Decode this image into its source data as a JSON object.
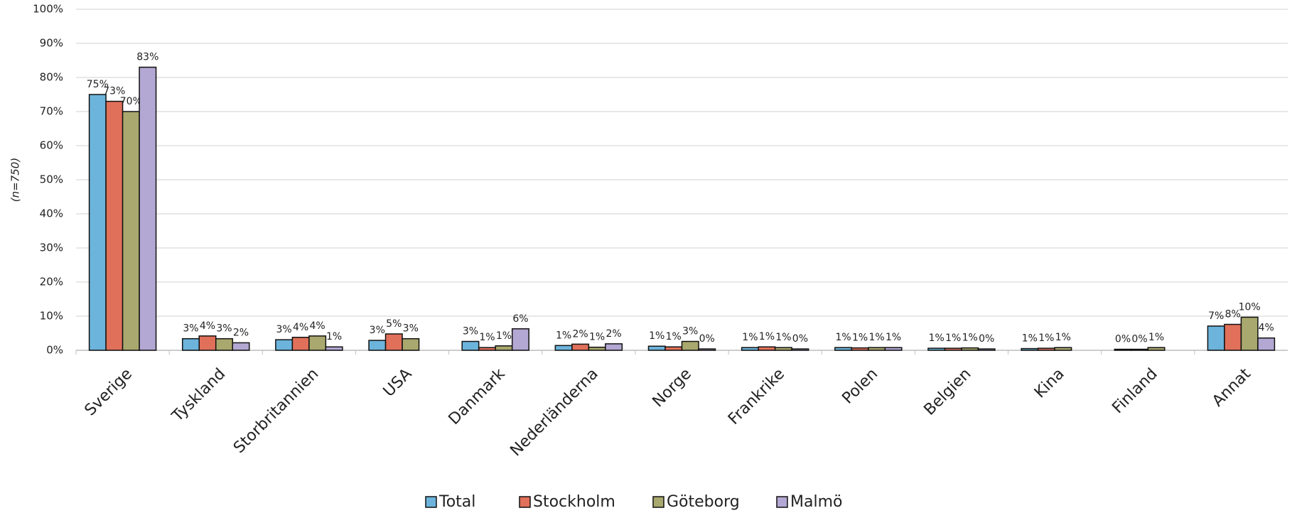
{
  "chart_data": {
    "type": "bar",
    "y_axis_label": "(n=750)",
    "categories": [
      "Sverige",
      "Tyskland",
      "Storbritannien",
      "USA",
      "Danmark",
      "Nederländerna",
      "Norge",
      "Frankrike",
      "Polen",
      "Belgien",
      "Kina",
      "Finland",
      "Annat"
    ],
    "series": [
      {
        "name": "Total",
        "color": "#6cb4dc",
        "values": [
          75,
          3.4,
          3.1,
          2.9,
          2.6,
          1.4,
          1.2,
          0.8,
          0.8,
          0.6,
          0.5,
          0.3,
          7.1
        ],
        "value_labels": [
          "75%",
          "3%",
          "3%",
          "3%",
          "3%",
          "1%",
          "1%",
          "1%",
          "1%",
          "1%",
          "1%",
          "0%",
          "7%"
        ]
      },
      {
        "name": "Stockholm",
        "color": "#e0705a",
        "values": [
          73,
          4.2,
          3.8,
          4.8,
          0.8,
          1.8,
          1.0,
          1.0,
          0.7,
          0.6,
          0.6,
          0.3,
          7.6
        ],
        "value_labels": [
          "73%",
          "4%",
          "4%",
          "5%",
          "1%",
          "2%",
          "1%",
          "1%",
          "1%",
          "1%",
          "1%",
          "0%",
          "8%"
        ]
      },
      {
        "name": "Göteborg",
        "color": "#a9a86e",
        "values": [
          70,
          3.4,
          4.2,
          3.4,
          1.3,
          0.9,
          2.6,
          0.8,
          0.8,
          0.7,
          0.8,
          0.8,
          9.7
        ],
        "value_labels": [
          "70%",
          "3%",
          "4%",
          "3%",
          "1%",
          "1%",
          "3%",
          "1%",
          "1%",
          "1%",
          "1%",
          "1%",
          "10%"
        ]
      },
      {
        "name": "Malmö",
        "color": "#b3a8d3",
        "values": [
          83,
          2.2,
          1.0,
          null,
          6.3,
          1.9,
          0.4,
          0.4,
          0.8,
          0.4,
          null,
          null,
          3.6
        ],
        "value_labels": [
          "83%",
          "2%",
          "1%",
          null,
          "6%",
          "2%",
          "0%",
          "0%",
          "1%",
          "0%",
          null,
          null,
          "4%"
        ]
      }
    ],
    "ylim": [
      0,
      100
    ],
    "yticks": [
      {
        "value": 0,
        "label": "0%"
      },
      {
        "value": 10,
        "label": "10%"
      },
      {
        "value": 20,
        "label": "20%"
      },
      {
        "value": 30,
        "label": "30%"
      },
      {
        "value": 40,
        "label": "40%"
      },
      {
        "value": 50,
        "label": "50%"
      },
      {
        "value": 60,
        "label": "60%"
      },
      {
        "value": 70,
        "label": "70%"
      },
      {
        "value": 80,
        "label": "80%"
      },
      {
        "value": 90,
        "label": "90%"
      },
      {
        "value": 100,
        "label": "100%"
      }
    ],
    "grid": true,
    "legend": "bottom"
  }
}
